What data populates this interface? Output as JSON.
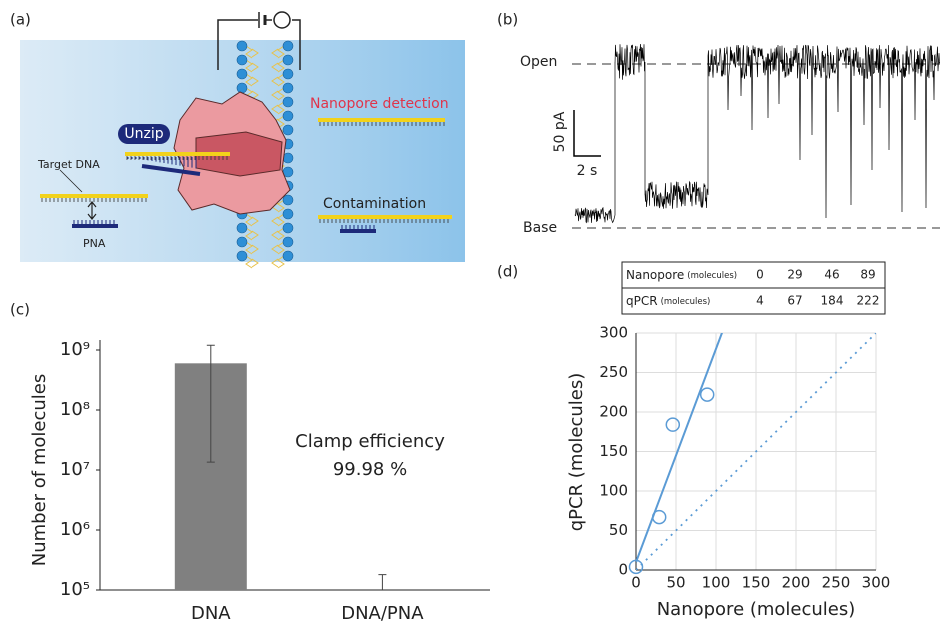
{
  "panel_labels": [
    "(a)",
    "(b)",
    "(c)",
    "(d)"
  ],
  "diagram": {
    "nanopore_detection": "Nanopore detection",
    "unzip": "Unzip",
    "target_dna": "Target DNA",
    "pna": "PNA",
    "contamination": "Contamination"
  },
  "trace": {
    "open": "Open",
    "base": "Base",
    "current_scale": "50 pA",
    "time_scale": "2 s"
  },
  "table": {
    "rows": [
      {
        "label": "Nanopore",
        "unit": "(molecules)",
        "cells": [
          "0",
          "29",
          "46",
          "89"
        ]
      },
      {
        "label": "qPCR",
        "unit": "(molecules)",
        "cells": [
          "4",
          "67",
          "184",
          "222"
        ]
      }
    ]
  },
  "chart_data": [
    {
      "type": "bar",
      "categories": [
        "DNA",
        "DNA/PNA"
      ],
      "values": [
        600000000,
        100000
      ],
      "error_lower": [
        13500000,
        null
      ],
      "error_upper": [
        1200000000,
        180000
      ],
      "color": "#808080",
      "ylabel": "Number of molecules",
      "log_scale": true,
      "annotations": [
        "Clamp efficiency",
        "99.98 %"
      ],
      "ylim": [
        100000,
        1000000000
      ],
      "yticks": [
        {
          "value": 100000,
          "label": "10⁵"
        },
        {
          "value": 1000000,
          "label": "10⁶"
        },
        {
          "value": 10000000,
          "label": "10⁷"
        },
        {
          "value": 100000000,
          "label": "10⁸"
        },
        {
          "value": 1000000000,
          "label": "10⁹"
        }
      ]
    },
    {
      "type": "scatter",
      "x": [
        0,
        29,
        46,
        89
      ],
      "values": [
        4,
        67,
        184,
        222
      ],
      "color": "#5b9bd5",
      "xlabel": "Nanopore (molecules)",
      "ylabel": "qPCR (molecules)",
      "xlim": [
        0,
        300
      ],
      "ylim": [
        0,
        300
      ],
      "xticks": [
        0,
        50,
        100,
        150,
        200,
        250,
        300
      ],
      "yticks": [
        0,
        50,
        100,
        150,
        200,
        250,
        300
      ],
      "grid": true,
      "trend_line": {
        "slope": 2.7,
        "intercept": 10
      },
      "reference_line": {
        "slope": 1,
        "intercept": 0
      }
    }
  ]
}
